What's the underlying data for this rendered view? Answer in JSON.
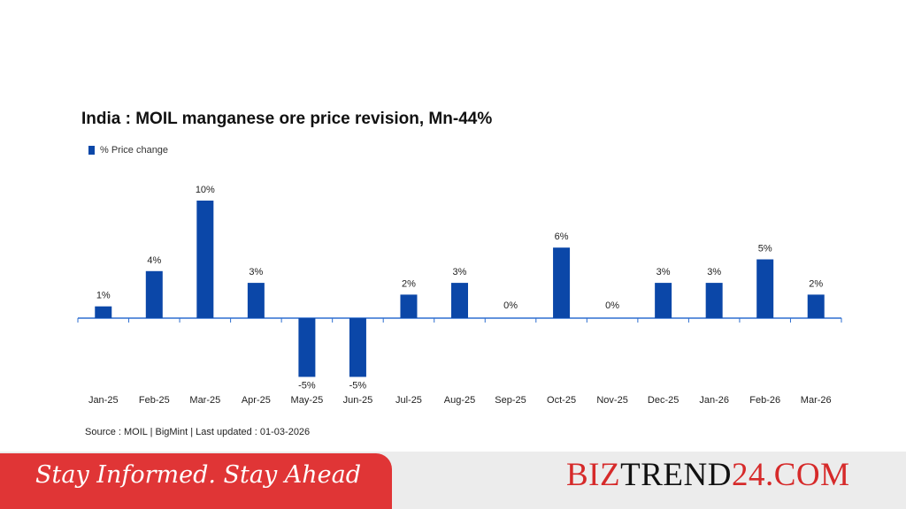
{
  "chart_data": {
    "type": "bar",
    "title": "India : MOIL manganese ore price revision, Mn-44%",
    "legend": {
      "label": "% Price change",
      "position": "top-left"
    },
    "categories": [
      "Jan-25",
      "Feb-25",
      "Mar-25",
      "Apr-25",
      "May-25",
      "Jun-25",
      "Jul-25",
      "Aug-25",
      "Sep-25",
      "Oct-25",
      "Nov-25",
      "Dec-25",
      "Jan-26",
      "Feb-26",
      "Mar-26"
    ],
    "series": [
      {
        "name": "% Price change",
        "values": [
          1,
          4,
          10,
          3,
          -5,
          -5,
          2,
          3,
          0,
          6,
          0,
          3,
          3,
          5,
          2
        ],
        "color": "#0b47a8"
      }
    ],
    "data_labels": [
      "1%",
      "4%",
      "10%",
      "3%",
      "-5%",
      "-5%",
      "2%",
      "3%",
      "0%",
      "6%",
      "0%",
      "3%",
      "3%",
      "5%",
      "2%"
    ],
    "ylim": [
      -5,
      10
    ],
    "grid": false,
    "source": "Source : MOIL | BigMint | Last updated : 01-03-2026"
  },
  "footer": {
    "tagline": "Stay Informed. Stay Ahead",
    "brand_parts": [
      "BIZ",
      "TREND",
      "24.COM"
    ],
    "accent_color": "#e03536"
  }
}
